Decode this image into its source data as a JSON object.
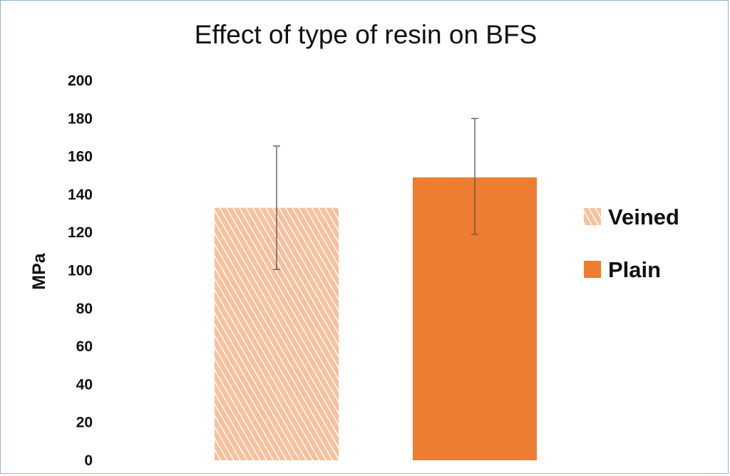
{
  "chart_data": {
    "type": "bar",
    "title": "Effect of type of resin on BFS",
    "ylabel": "MPa",
    "xlabel": "",
    "ylim": [
      0,
      200
    ],
    "yticks": [
      0,
      20,
      40,
      60,
      80,
      100,
      120,
      140,
      160,
      180,
      200
    ],
    "grid": false,
    "legend_position": "right",
    "series": [
      {
        "name": "Veined",
        "value": 133,
        "error_low": 100.5,
        "error_high": 165.5,
        "color": "#f7c09c",
        "pattern": "hatched"
      },
      {
        "name": "Plain",
        "value": 149,
        "error_low": 119,
        "error_high": 180,
        "color": "#ed7d31",
        "pattern": "solid"
      }
    ]
  }
}
